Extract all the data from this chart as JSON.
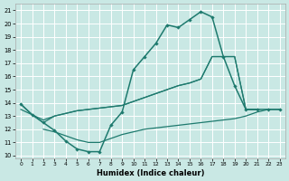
{
  "xlabel": "Humidex (Indice chaleur)",
  "bg_color": "#c9e8e4",
  "grid_color": "#ffffff",
  "line_color": "#1e7a6e",
  "xlim": [
    -0.5,
    23.5
  ],
  "ylim": [
    9.8,
    21.5
  ],
  "yticks": [
    10,
    11,
    12,
    13,
    14,
    15,
    16,
    17,
    18,
    19,
    20,
    21
  ],
  "xticks": [
    0,
    1,
    2,
    3,
    4,
    5,
    6,
    7,
    8,
    9,
    10,
    11,
    12,
    13,
    14,
    15,
    16,
    17,
    18,
    19,
    20,
    21,
    22,
    23
  ],
  "curve_main": [
    13.9,
    13.1,
    12.5,
    11.9,
    11.1,
    10.5,
    10.3,
    10.3,
    12.3,
    13.3,
    16.5,
    17.5,
    18.5,
    19.9,
    19.7,
    20.3,
    20.9,
    20.5,
    17.5,
    15.3,
    13.5,
    13.5,
    13.5,
    13.5
  ],
  "curve_diag1": [
    13.9,
    13.1,
    12.5,
    13.0,
    13.2,
    13.4,
    13.5,
    13.6,
    13.7,
    13.8,
    14.1,
    14.4,
    14.7,
    15.0,
    15.3,
    15.5,
    15.8,
    17.5,
    17.5,
    17.5,
    13.5,
    13.5,
    null,
    null
  ],
  "curve_diag2": [
    13.5,
    13.1,
    12.7,
    13.0,
    13.2,
    13.4,
    13.5,
    13.6,
    13.7,
    13.8,
    14.1,
    14.4,
    14.7,
    15.0,
    15.3,
    15.5,
    15.8,
    17.5,
    17.5,
    17.5,
    13.5,
    13.5,
    null,
    null
  ],
  "curve_flat": [
    null,
    null,
    12.0,
    11.8,
    11.5,
    11.2,
    11.0,
    11.0,
    11.3,
    11.6,
    11.8,
    12.0,
    12.1,
    12.2,
    12.3,
    12.4,
    12.5,
    12.6,
    12.7,
    12.8,
    13.0,
    13.3,
    13.5,
    13.5
  ]
}
